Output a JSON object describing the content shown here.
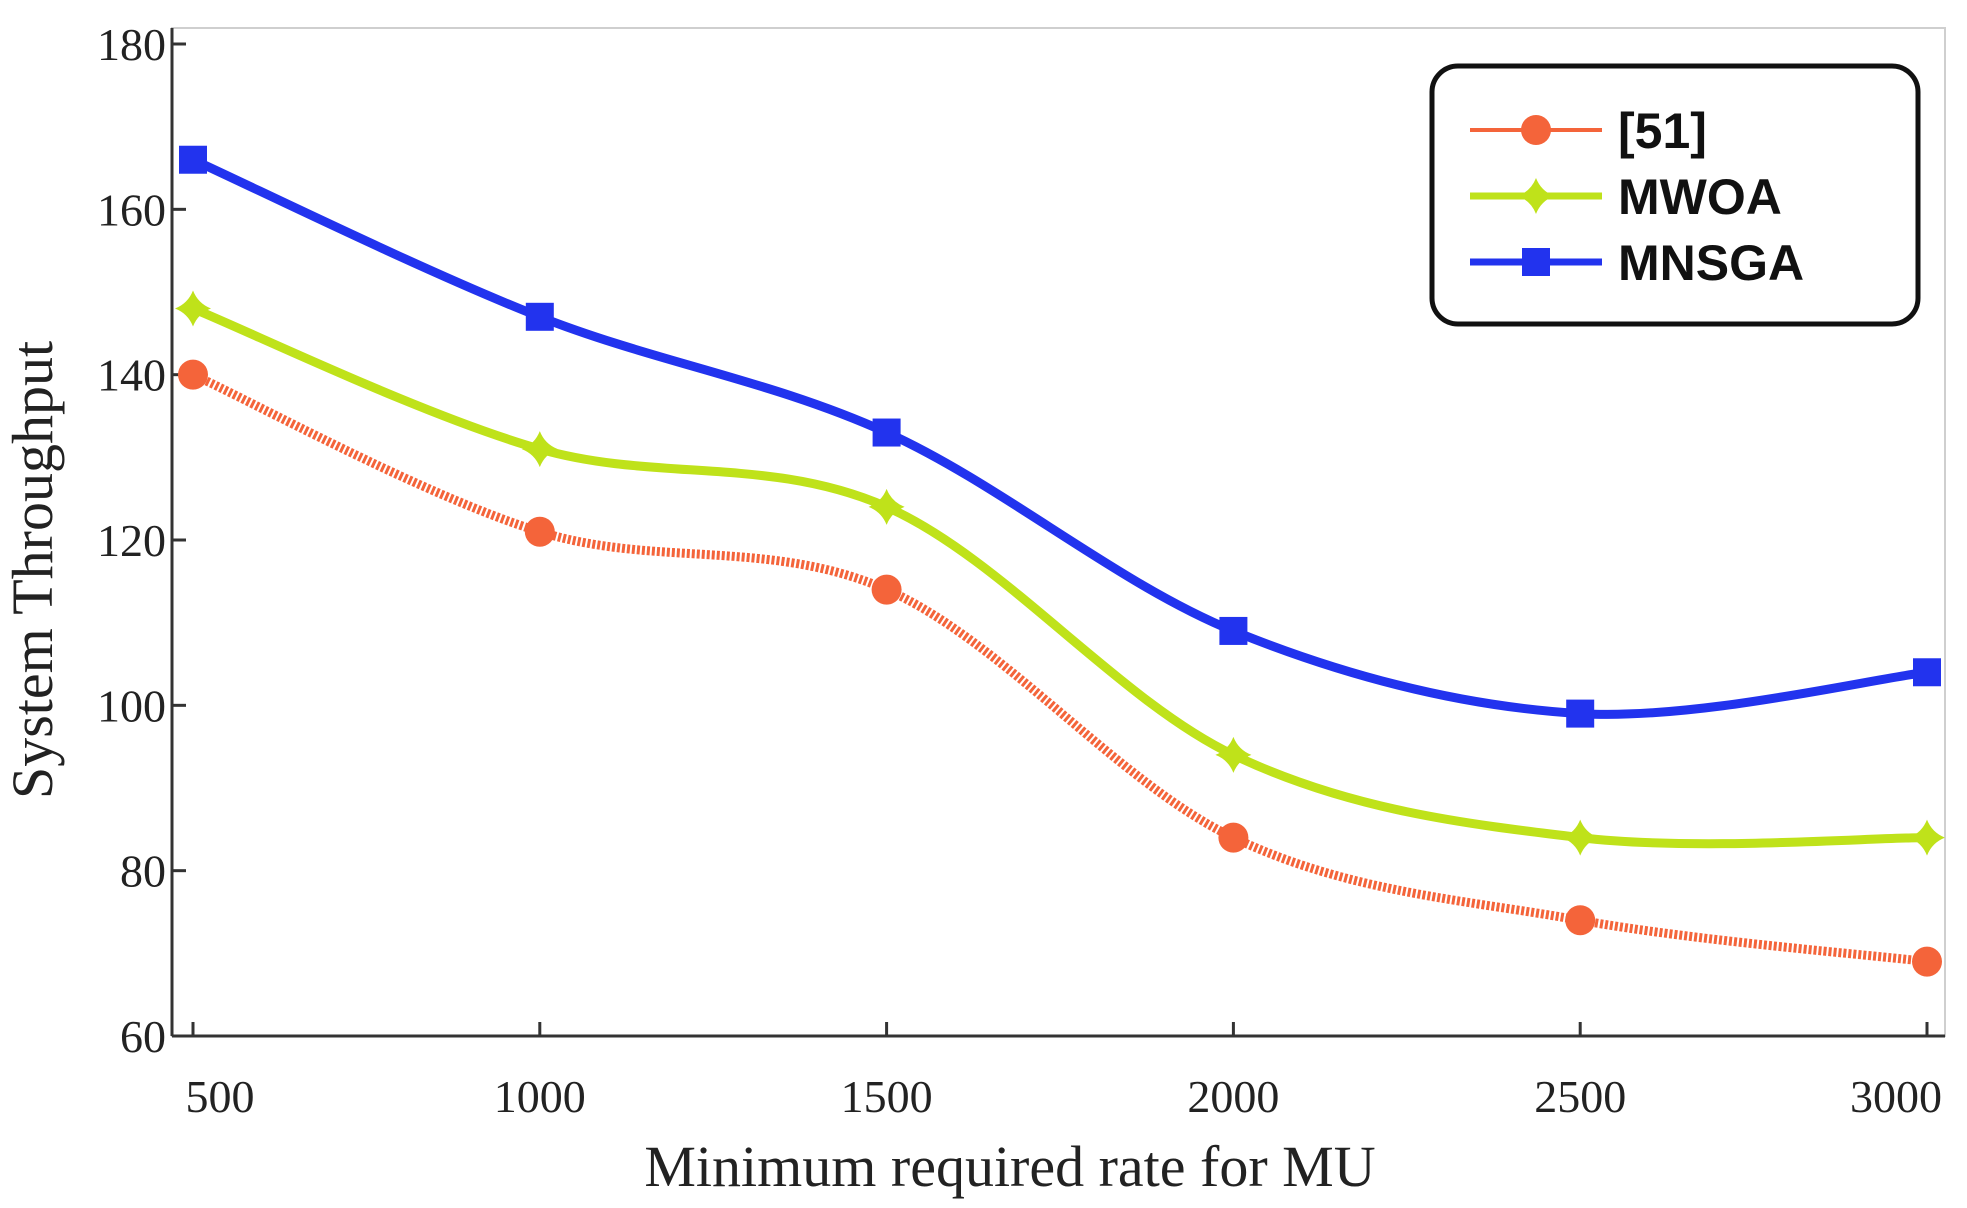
{
  "chart_data": {
    "type": "line",
    "title": "",
    "xlabel": "Minimum required rate for MU",
    "ylabel": "System Throughput",
    "x": [
      500,
      1000,
      1500,
      2000,
      2500,
      3000
    ],
    "xticks": [
      "500",
      "1000",
      "1500",
      "2000",
      "2500",
      "3000"
    ],
    "yticks": [
      "60",
      "80",
      "100",
      "120",
      "140",
      "160",
      "180"
    ],
    "ylim": [
      60,
      180
    ],
    "grid": false,
    "legend_position": "top-right",
    "series": [
      {
        "name": "[51]",
        "values": [
          140,
          121,
          114,
          84,
          74,
          69
        ],
        "color": "#f4643a",
        "marker": "circle",
        "style": "dotted"
      },
      {
        "name": "MWOA",
        "values": [
          148,
          131,
          124,
          94,
          84,
          84
        ],
        "color": "#bfe21a",
        "marker": "star",
        "style": "solid"
      },
      {
        "name": "MNSGA",
        "values": [
          166,
          147,
          133,
          109,
          99,
          104
        ],
        "color": "#2233ee",
        "marker": "square",
        "style": "solid"
      }
    ]
  }
}
